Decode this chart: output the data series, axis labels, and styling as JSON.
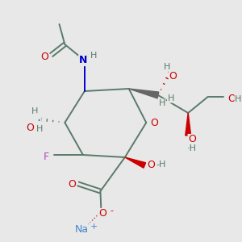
{
  "bg_color": "#e8e8e8",
  "bond_color": "#5a7a6a",
  "bond_lw": 1.4,
  "atom_colors": {
    "O": "#cc0000",
    "N": "#0000cc",
    "F": "#bb44bb",
    "Na": "#4488cc",
    "H": "#5a7a6a",
    "C": "#5a7a6a"
  },
  "fs": 9,
  "hfs": 8
}
